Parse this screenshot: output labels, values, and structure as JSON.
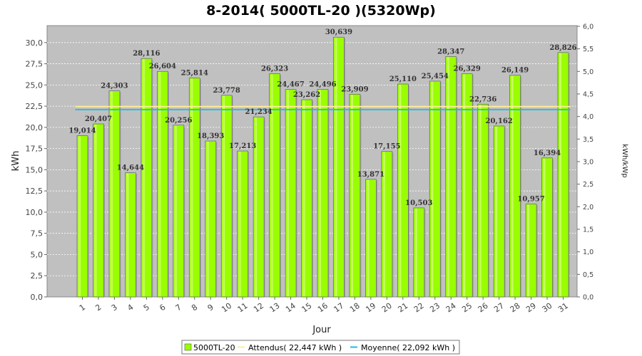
{
  "chart_data": {
    "type": "bar",
    "title": "8-2014( 5000TL-20 )(5320Wp)",
    "xlabel": "Jour",
    "ylabel": "kWh",
    "ylabel_right": "kWh/kWp",
    "ylim": [
      0,
      32
    ],
    "ylim_right": [
      0,
      6.015
    ],
    "y_ticks": [
      "0,0",
      "2,5",
      "5,0",
      "7,5",
      "10,0",
      "12,5",
      "15,0",
      "17,5",
      "20,0",
      "22,5",
      "25,0",
      "27,5",
      "30,0"
    ],
    "y_ticks_right": [
      "0,0",
      "0,5",
      "1,0",
      "1,5",
      "2,0",
      "2,5",
      "3,0",
      "3,5",
      "4,0",
      "4,5",
      "5,0",
      "5,5",
      "6,0"
    ],
    "grid": true,
    "legend_position": "bottom",
    "categories": [
      "1",
      "2",
      "3",
      "4",
      "5",
      "6",
      "7",
      "8",
      "9",
      "10",
      "11",
      "12",
      "13",
      "14",
      "15",
      "16",
      "17",
      "18",
      "19",
      "20",
      "21",
      "22",
      "23",
      "24",
      "25",
      "26",
      "27",
      "28",
      "29",
      "30",
      "31"
    ],
    "series": [
      {
        "name": "5000TL-20",
        "color": "#99ff00",
        "values": [
          19.014,
          20.407,
          24.303,
          14.644,
          28.116,
          26.604,
          20.256,
          25.814,
          18.393,
          23.778,
          17.213,
          21.234,
          26.323,
          24.467,
          23.262,
          24.496,
          30.639,
          23.909,
          13.871,
          17.155,
          25.11,
          10.503,
          25.454,
          28.347,
          26.329,
          22.736,
          20.162,
          26.149,
          10.957,
          16.394,
          28.826
        ],
        "labels": [
          "19,014",
          "20,407",
          "24,303",
          "14,644",
          "28,116",
          "26,604",
          "20,256",
          "25,814",
          "18,393",
          "23,778",
          "17,213",
          "21,234",
          "26,323",
          "24,467",
          "23,262",
          "24,496",
          "30,639",
          "23,909",
          "13,871",
          "17,155",
          "25,110",
          "10,503",
          "25,454",
          "28,347",
          "26,329",
          "22,736",
          "20,162",
          "26,149",
          "10,957",
          "16,394",
          "28,826"
        ]
      }
    ],
    "lines": [
      {
        "name": "Attendus( 22,447 kWh )",
        "value": 22.447,
        "color": "#ffee99"
      },
      {
        "name": "Moyenne( 22,092 kWh )",
        "value": 22.092,
        "color": "#22bbdd"
      }
    ]
  }
}
